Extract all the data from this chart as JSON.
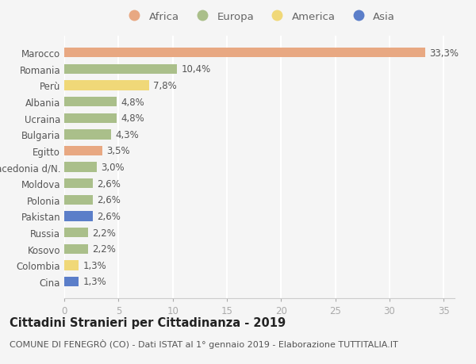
{
  "countries": [
    "Marocco",
    "Romania",
    "Perù",
    "Albania",
    "Ucraina",
    "Bulgaria",
    "Egitto",
    "Macedonia d/N.",
    "Moldova",
    "Polonia",
    "Pakistan",
    "Russia",
    "Kosovo",
    "Colombia",
    "Cina"
  ],
  "values": [
    33.3,
    10.4,
    7.8,
    4.8,
    4.8,
    4.3,
    3.5,
    3.0,
    2.6,
    2.6,
    2.6,
    2.2,
    2.2,
    1.3,
    1.3
  ],
  "labels": [
    "33,3%",
    "10,4%",
    "7,8%",
    "4,8%",
    "4,8%",
    "4,3%",
    "3,5%",
    "3,0%",
    "2,6%",
    "2,6%",
    "2,6%",
    "2,2%",
    "2,2%",
    "1,3%",
    "1,3%"
  ],
  "continents": [
    "Africa",
    "Europa",
    "America",
    "Europa",
    "Europa",
    "Europa",
    "Africa",
    "Europa",
    "Europa",
    "Europa",
    "Asia",
    "Europa",
    "Europa",
    "America",
    "Asia"
  ],
  "colors": {
    "Africa": "#E8A882",
    "Europa": "#AABF8A",
    "America": "#F0D878",
    "Asia": "#5B7EC9"
  },
  "legend_order": [
    "Africa",
    "Europa",
    "America",
    "Asia"
  ],
  "xlim": [
    0,
    36
  ],
  "xticks": [
    0,
    5,
    10,
    15,
    20,
    25,
    30,
    35
  ],
  "title": "Cittadini Stranieri per Cittadinanza - 2019",
  "subtitle": "COMUNE DI FENEGRÒ (CO) - Dati ISTAT al 1° gennaio 2019 - Elaborazione TUTTITALIA.IT",
  "background_color": "#f5f5f5",
  "bar_height": 0.6,
  "label_fontsize": 8.5,
  "title_fontsize": 10.5,
  "subtitle_fontsize": 8,
  "ytick_fontsize": 8.5,
  "xtick_fontsize": 8.5,
  "legend_fontsize": 9.5
}
